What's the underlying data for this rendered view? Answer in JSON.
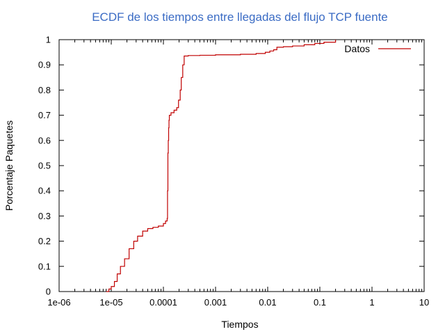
{
  "chart_data": {
    "type": "line",
    "title": "ECDF de los tiempos entre llegadas del flujo TCP fuente",
    "xlabel": "Tiempos",
    "ylabel": "Porcentaje Paquetes",
    "xscale": "log",
    "xlim": [
      1e-06,
      10
    ],
    "ylim": [
      0,
      1
    ],
    "x_ticks": [
      1e-06,
      1e-05,
      0.0001,
      0.001,
      0.01,
      0.1,
      1,
      10
    ],
    "x_tick_labels": [
      "1e-06",
      "1e-05",
      "0.0001",
      "0.001",
      "0.01",
      "0.1",
      "1",
      "10"
    ],
    "y_ticks": [
      0,
      0.1,
      0.2,
      0.3,
      0.4,
      0.5,
      0.6,
      0.7,
      0.8,
      0.9,
      1
    ],
    "y_tick_labels": [
      "0",
      "0.1",
      "0.2",
      "0.3",
      "0.4",
      "0.5",
      "0.6",
      "0.7",
      "0.8",
      "0.9",
      "1"
    ],
    "grid": false,
    "legend": "top-right",
    "colors": {
      "series": "#c00000",
      "title": "#3a6bc4"
    },
    "series": [
      {
        "name": "Datos",
        "x": [
          8e-06,
          9e-06,
          1e-05,
          1.15e-05,
          1.3e-05,
          1.5e-05,
          1.8e-05,
          2.2e-05,
          2.7e-05,
          3.2e-05,
          4e-05,
          5e-05,
          6.3e-05,
          8e-05,
          0.0001,
          0.00011,
          0.000118,
          0.00012,
          0.000122,
          0.000124,
          0.000126,
          0.000128,
          0.00013,
          0.00014,
          0.00016,
          0.00018,
          0.000195,
          0.00021,
          0.00022,
          0.000235,
          0.00025,
          0.0003,
          0.0005,
          0.001,
          0.003,
          0.006,
          0.009,
          0.011,
          0.013,
          0.015,
          0.02,
          0.03,
          0.05,
          0.08,
          0.12,
          0.2
        ],
        "y": [
          0.0,
          0.01,
          0.02,
          0.04,
          0.07,
          0.1,
          0.13,
          0.17,
          0.2,
          0.22,
          0.24,
          0.25,
          0.255,
          0.26,
          0.27,
          0.28,
          0.29,
          0.4,
          0.55,
          0.6,
          0.65,
          0.68,
          0.7,
          0.71,
          0.72,
          0.73,
          0.76,
          0.8,
          0.85,
          0.9,
          0.935,
          0.937,
          0.938,
          0.94,
          0.942,
          0.945,
          0.95,
          0.955,
          0.96,
          0.97,
          0.972,
          0.975,
          0.98,
          0.985,
          0.99,
          1.0
        ]
      }
    ]
  }
}
